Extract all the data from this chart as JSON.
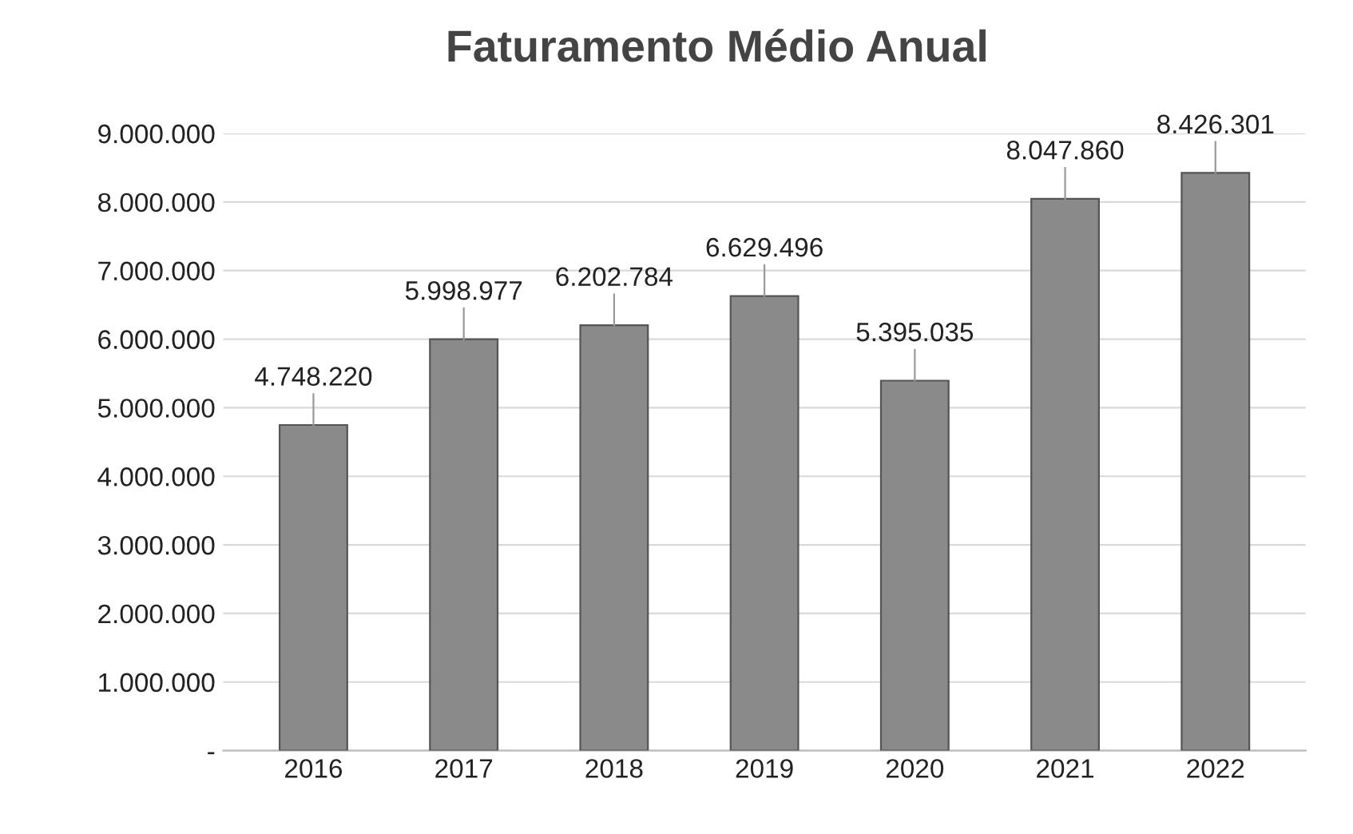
{
  "chart_data": {
    "type": "bar",
    "title": "Faturamento Médio Anual",
    "categories": [
      "2016",
      "2017",
      "2018",
      "2019",
      "2020",
      "2021",
      "2022"
    ],
    "values": [
      4748220,
      5998977,
      6202784,
      6629496,
      5395035,
      8047860,
      8426301
    ],
    "value_labels": [
      "4.748.220",
      "5.998.977",
      "6.202.784",
      "6.629.496",
      "5.395.035",
      "8.047.860",
      "8.426.301"
    ],
    "color": "#8a8a8a",
    "ylim": [
      0,
      9000000
    ],
    "yticks": [
      {
        "value": 0,
        "label": "-"
      },
      {
        "value": 1000000,
        "label": "1.000.000"
      },
      {
        "value": 2000000,
        "label": "2.000.000"
      },
      {
        "value": 3000000,
        "label": "3.000.000"
      },
      {
        "value": 4000000,
        "label": "4.000.000"
      },
      {
        "value": 5000000,
        "label": "5.000.000"
      },
      {
        "value": 6000000,
        "label": "6.000.000"
      },
      {
        "value": 7000000,
        "label": "7.000.000"
      },
      {
        "value": 8000000,
        "label": "8.000.000"
      },
      {
        "value": 9000000,
        "label": "9.000.000"
      }
    ],
    "grid": "y"
  }
}
